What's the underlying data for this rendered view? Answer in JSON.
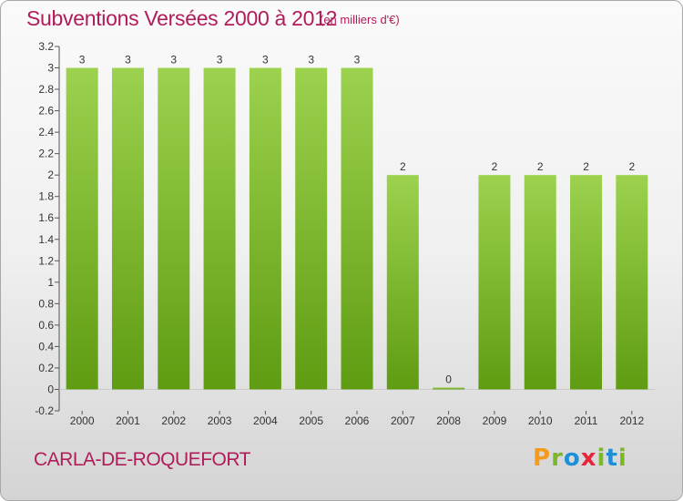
{
  "header": {
    "title": "Subventions Versées 2000 à 2012",
    "unit": "(en milliers d'€)"
  },
  "footer": {
    "commune": "CARLA-DE-ROQUEFORT",
    "logo_letters": [
      "P",
      "r",
      "o",
      "x",
      "i",
      "t",
      "i"
    ]
  },
  "colors": {
    "title": "#b01c5a",
    "bar_top": "#9cd24e",
    "bar_bottom": "#5f9c12",
    "logo": [
      "#f49a1c",
      "#7cb82a",
      "#1e90d8",
      "#e8253a",
      "#7cb82a",
      "#1e90d8",
      "#7cb82a"
    ]
  },
  "chart_data": {
    "type": "bar",
    "title": "Subventions Versées 2000 à 2012",
    "subtitle": "(en milliers d'€)",
    "categories": [
      "2000",
      "2001",
      "2002",
      "2003",
      "2004",
      "2005",
      "2006",
      "2007",
      "2008",
      "2009",
      "2010",
      "2011",
      "2012"
    ],
    "values": [
      3,
      3,
      3,
      3,
      3,
      3,
      3,
      2,
      0,
      2,
      2,
      2,
      2
    ],
    "data_labels": [
      "3",
      "3",
      "3",
      "3",
      "3",
      "3",
      "3",
      "2",
      "0",
      "2",
      "2",
      "2",
      "2"
    ],
    "ylim": [
      -0.2,
      3.2
    ],
    "yticks": [
      -0.2,
      0,
      0.2,
      0.4,
      0.6,
      0.8,
      1,
      1.2,
      1.4,
      1.6,
      1.8,
      2,
      2.2,
      2.4,
      2.6,
      2.8,
      3,
      3.2
    ],
    "ytick_labels": [
      "-0.2",
      "0",
      "0.2",
      "0.4",
      "0.6",
      "0.8",
      "1",
      "1.2",
      "1.4",
      "1.6",
      "1.8",
      "2",
      "2.2",
      "2.4",
      "2.6",
      "2.8",
      "3",
      "3.2"
    ],
    "grid": false,
    "legend": "none"
  }
}
